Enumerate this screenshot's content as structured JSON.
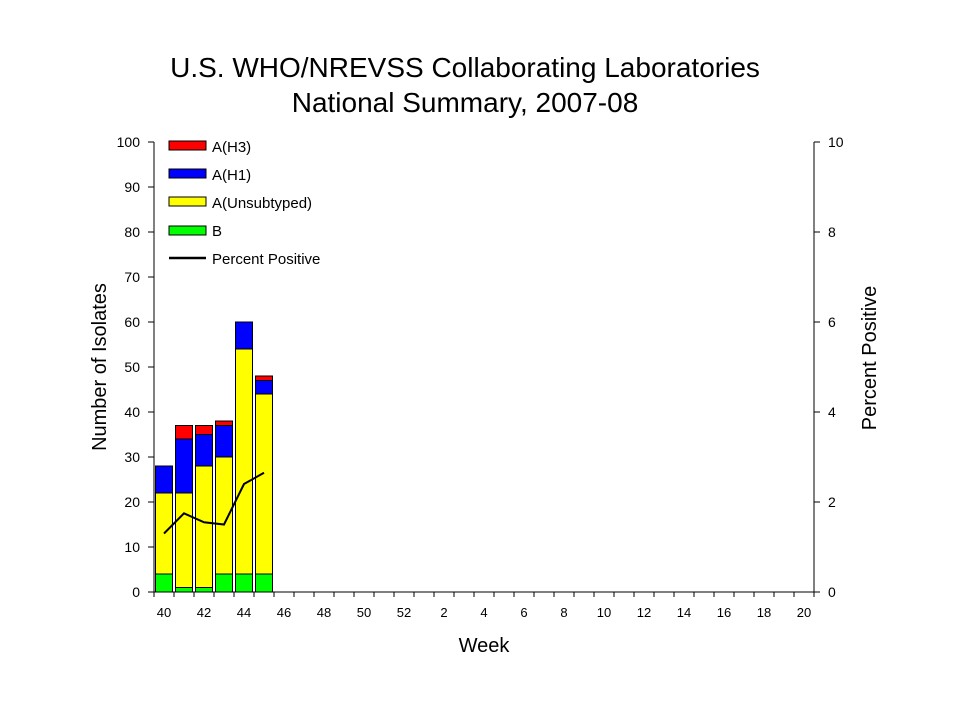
{
  "chart_data": {
    "type": "bar",
    "stacked": true,
    "title": [
      "U.S. WHO/NREVSS Collaborating Laboratories",
      "National Summary, 2007-08"
    ],
    "xlabel": "Week",
    "ylabel": "Number of Isolates",
    "y2label": "Percent Positive",
    "ylim": [
      0,
      100
    ],
    "y2lim": [
      0,
      10
    ],
    "yticks": [
      "0",
      "10",
      "20",
      "30",
      "40",
      "50",
      "60",
      "70",
      "80",
      "90",
      "100"
    ],
    "y2ticks": [
      "0",
      "2",
      "4",
      "6",
      "8",
      "10"
    ],
    "weeks": [
      "40",
      "41",
      "42",
      "43",
      "44",
      "45",
      "46",
      "47",
      "48",
      "49",
      "50",
      "51",
      "52",
      "1",
      "2",
      "3",
      "4",
      "5",
      "6",
      "7",
      "8",
      "9",
      "10",
      "11",
      "12",
      "13",
      "14",
      "15",
      "16",
      "17",
      "18",
      "19",
      "20"
    ],
    "xticklabels": [
      "40",
      "42",
      "44",
      "46",
      "48",
      "50",
      "52",
      "2",
      "4",
      "6",
      "8",
      "10",
      "12",
      "14",
      "16",
      "18",
      "20"
    ],
    "series": [
      {
        "name": "B",
        "color": "#00ff00",
        "values": [
          4,
          1,
          1,
          4,
          4,
          4
        ]
      },
      {
        "name": "A(Unsubtyped)",
        "color": "#ffff00",
        "values": [
          18,
          21,
          27,
          26,
          50,
          40
        ]
      },
      {
        "name": "A(H1)",
        "color": "#0000ff",
        "values": [
          6,
          12,
          7,
          7,
          6,
          3
        ]
      },
      {
        "name": "A(H3)",
        "color": "#ff0000",
        "values": [
          0,
          3,
          2,
          1,
          0,
          1
        ]
      }
    ],
    "line": {
      "name": "Percent Positive",
      "color": "#000000",
      "axis": "y2",
      "values": [
        1.3,
        1.75,
        1.55,
        1.5,
        2.4,
        2.65
      ]
    },
    "legend": {
      "placement": "top-left",
      "entries": [
        "A(H3)",
        "A(H1)",
        "A(Unsubtyped)",
        "B",
        "Percent Positive"
      ]
    },
    "grid": false
  }
}
